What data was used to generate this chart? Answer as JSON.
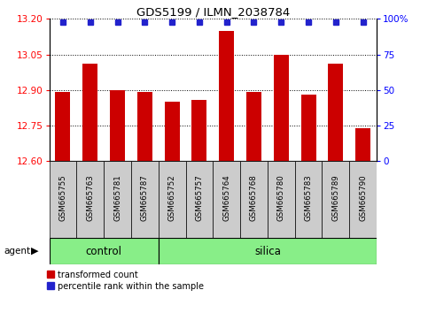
{
  "title": "GDS5199 / ILMN_2038784",
  "samples": [
    "GSM665755",
    "GSM665763",
    "GSM665781",
    "GSM665787",
    "GSM665752",
    "GSM665757",
    "GSM665764",
    "GSM665768",
    "GSM665780",
    "GSM665783",
    "GSM665789",
    "GSM665790"
  ],
  "red_values": [
    12.89,
    13.01,
    12.9,
    12.89,
    12.85,
    12.86,
    13.15,
    12.89,
    13.05,
    12.88,
    13.01,
    12.74
  ],
  "blue_values_y": [
    13.185,
    13.185,
    13.185,
    13.185,
    13.185,
    13.185,
    13.185,
    13.185,
    13.185,
    13.185,
    13.185,
    13.185
  ],
  "control_count": 4,
  "silica_count": 8,
  "y_min": 12.6,
  "y_max": 13.2,
  "y_ticks": [
    12.6,
    12.75,
    12.9,
    13.05,
    13.2
  ],
  "y2_ticks": [
    0,
    25,
    50,
    75,
    100
  ],
  "y2_tick_labels": [
    "0",
    "25",
    "50",
    "75",
    "100%"
  ],
  "bar_color": "#cc0000",
  "blue_marker_color": "#2222cc",
  "control_color": "#88ee88",
  "silica_color": "#88ee88",
  "tick_bg_color": "#cccccc",
  "bar_width": 0.55,
  "legend_red_label": "transformed count",
  "legend_blue_label": "percentile rank within the sample",
  "agent_label": "agent",
  "control_label": "control",
  "silica_label": "silica"
}
